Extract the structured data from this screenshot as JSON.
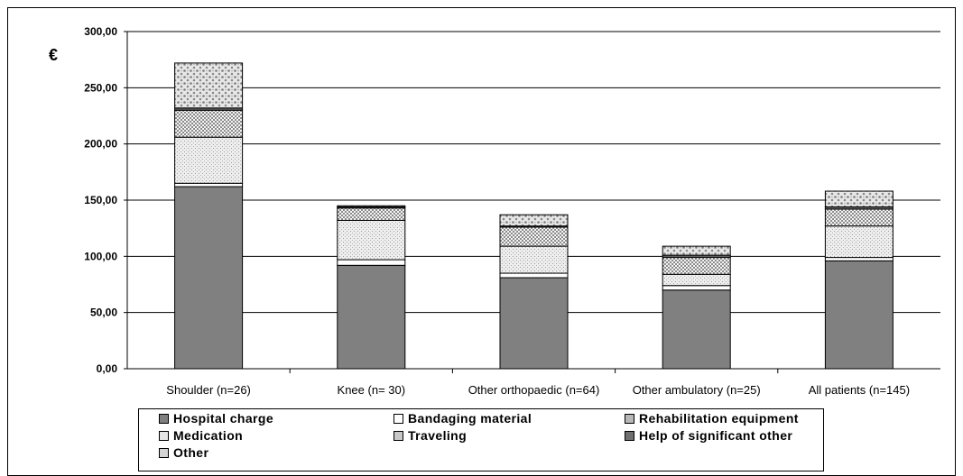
{
  "chart_data": {
    "type": "bar",
    "stacked": true,
    "title": "",
    "xlabel": "",
    "ylabel": "€",
    "ylim": [
      0,
      300
    ],
    "yticks": [
      "0,00",
      "50,00",
      "100,00",
      "150,00",
      "200,00",
      "250,00",
      "300,00"
    ],
    "ytick_values": [
      0,
      50,
      100,
      150,
      200,
      250,
      300
    ],
    "grid": true,
    "legend_position": "bottom",
    "categories": [
      "Shoulder (n=26)",
      "Knee (n= 30)",
      "Other orthopaedic (n=64)",
      "Other ambulatory (n=25)",
      "All patients (n=145)"
    ],
    "series": [
      {
        "name": "Hospital charge",
        "color": "#808080",
        "pattern": "solid",
        "values": [
          162,
          92,
          81,
          70,
          96
        ]
      },
      {
        "name": "Bandaging material",
        "color": "#ffffff",
        "pattern": "solid",
        "values": [
          3,
          5,
          4,
          4,
          3
        ]
      },
      {
        "name": "Medication",
        "color": "#e6e6e6",
        "pattern": "fine-dots",
        "values": [
          41,
          35,
          24,
          10,
          28
        ]
      },
      {
        "name": "Traveling",
        "color": "#c8c8c8",
        "pattern": "checker",
        "values": [
          24,
          11,
          17,
          15,
          15
        ]
      },
      {
        "name": "Help of significant other",
        "color": "#606060",
        "pattern": "solid",
        "values": [
          2,
          1,
          1,
          2,
          2
        ]
      },
      {
        "name": "Rehabilitation equipment",
        "color": "#c0c0c0",
        "pattern": "checker",
        "values": [
          0,
          0,
          0,
          0,
          0
        ]
      },
      {
        "name": "Other",
        "color": "#d0d0d0",
        "pattern": "coarse-dots",
        "values": [
          40,
          1,
          10,
          8,
          14
        ]
      }
    ]
  },
  "legend": [
    {
      "label": "Hospital charge",
      "swatch_color": "#808080"
    },
    {
      "label": "Bandaging material",
      "swatch_color": "#ffffff"
    },
    {
      "label": "Rehabilitation equipment",
      "swatch_color": "#b8b8b8"
    },
    {
      "label": "Medication",
      "swatch_color": "#e6e6e6"
    },
    {
      "label": "Traveling",
      "swatch_color": "#c8c8c8"
    },
    {
      "label": "Help of significant other",
      "swatch_color": "#707070"
    },
    {
      "label": "Other",
      "swatch_color": "#d4d4d4"
    }
  ]
}
